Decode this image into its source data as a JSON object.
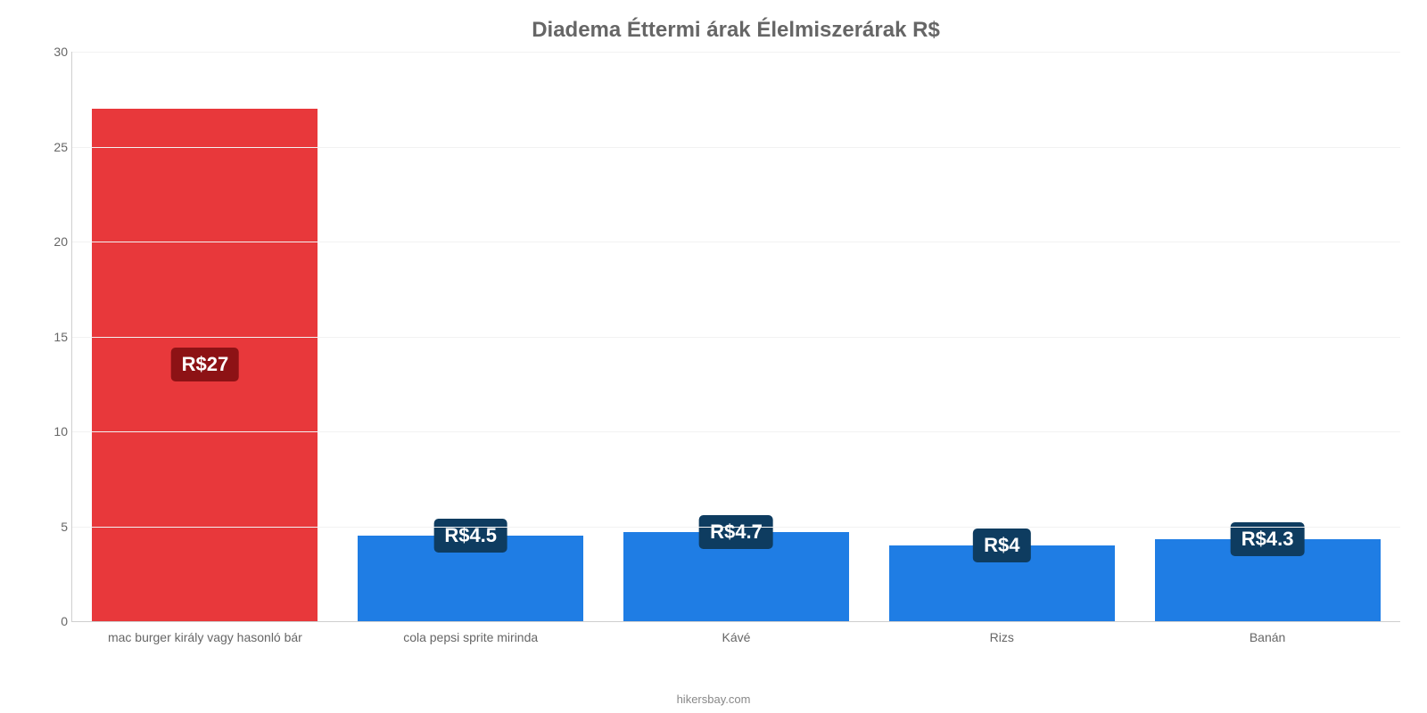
{
  "chart": {
    "type": "bar",
    "title": "Diadema Éttermi árak Élelmiszerárak R$",
    "title_fontsize": 24,
    "title_color": "#666666",
    "background_color": "#ffffff",
    "grid_color": "#f2f2f2",
    "axis_color": "#cfcfcf",
    "tick_color": "#666666",
    "tick_fontsize": 14,
    "ylim": [
      0,
      30
    ],
    "ytick_step": 5,
    "yticks": [
      0,
      5,
      10,
      15,
      20,
      25,
      30
    ],
    "bar_width_pct": 85,
    "categories": [
      "mac burger király vagy hasonló bár",
      "cola pepsi sprite mirinda",
      "Kávé",
      "Rizs",
      "Banán"
    ],
    "values": [
      27,
      4.5,
      4.7,
      4,
      4.3
    ],
    "value_labels": [
      "R$27",
      "R$4.5",
      "R$4.7",
      "R$4",
      "R$4.3"
    ],
    "bar_colors": [
      "#e8383b",
      "#1f7de4",
      "#1f7de4",
      "#1f7de4",
      "#1f7de4"
    ],
    "badge_colors": [
      "#8d1215",
      "#0e3c60",
      "#0e3c60",
      "#0e3c60",
      "#0e3c60"
    ],
    "badge_anchor": [
      "middle",
      "top",
      "top",
      "top",
      "top"
    ],
    "badge_fontsize": 22,
    "attribution": "hikersbay.com",
    "attribution_color": "#888888"
  }
}
